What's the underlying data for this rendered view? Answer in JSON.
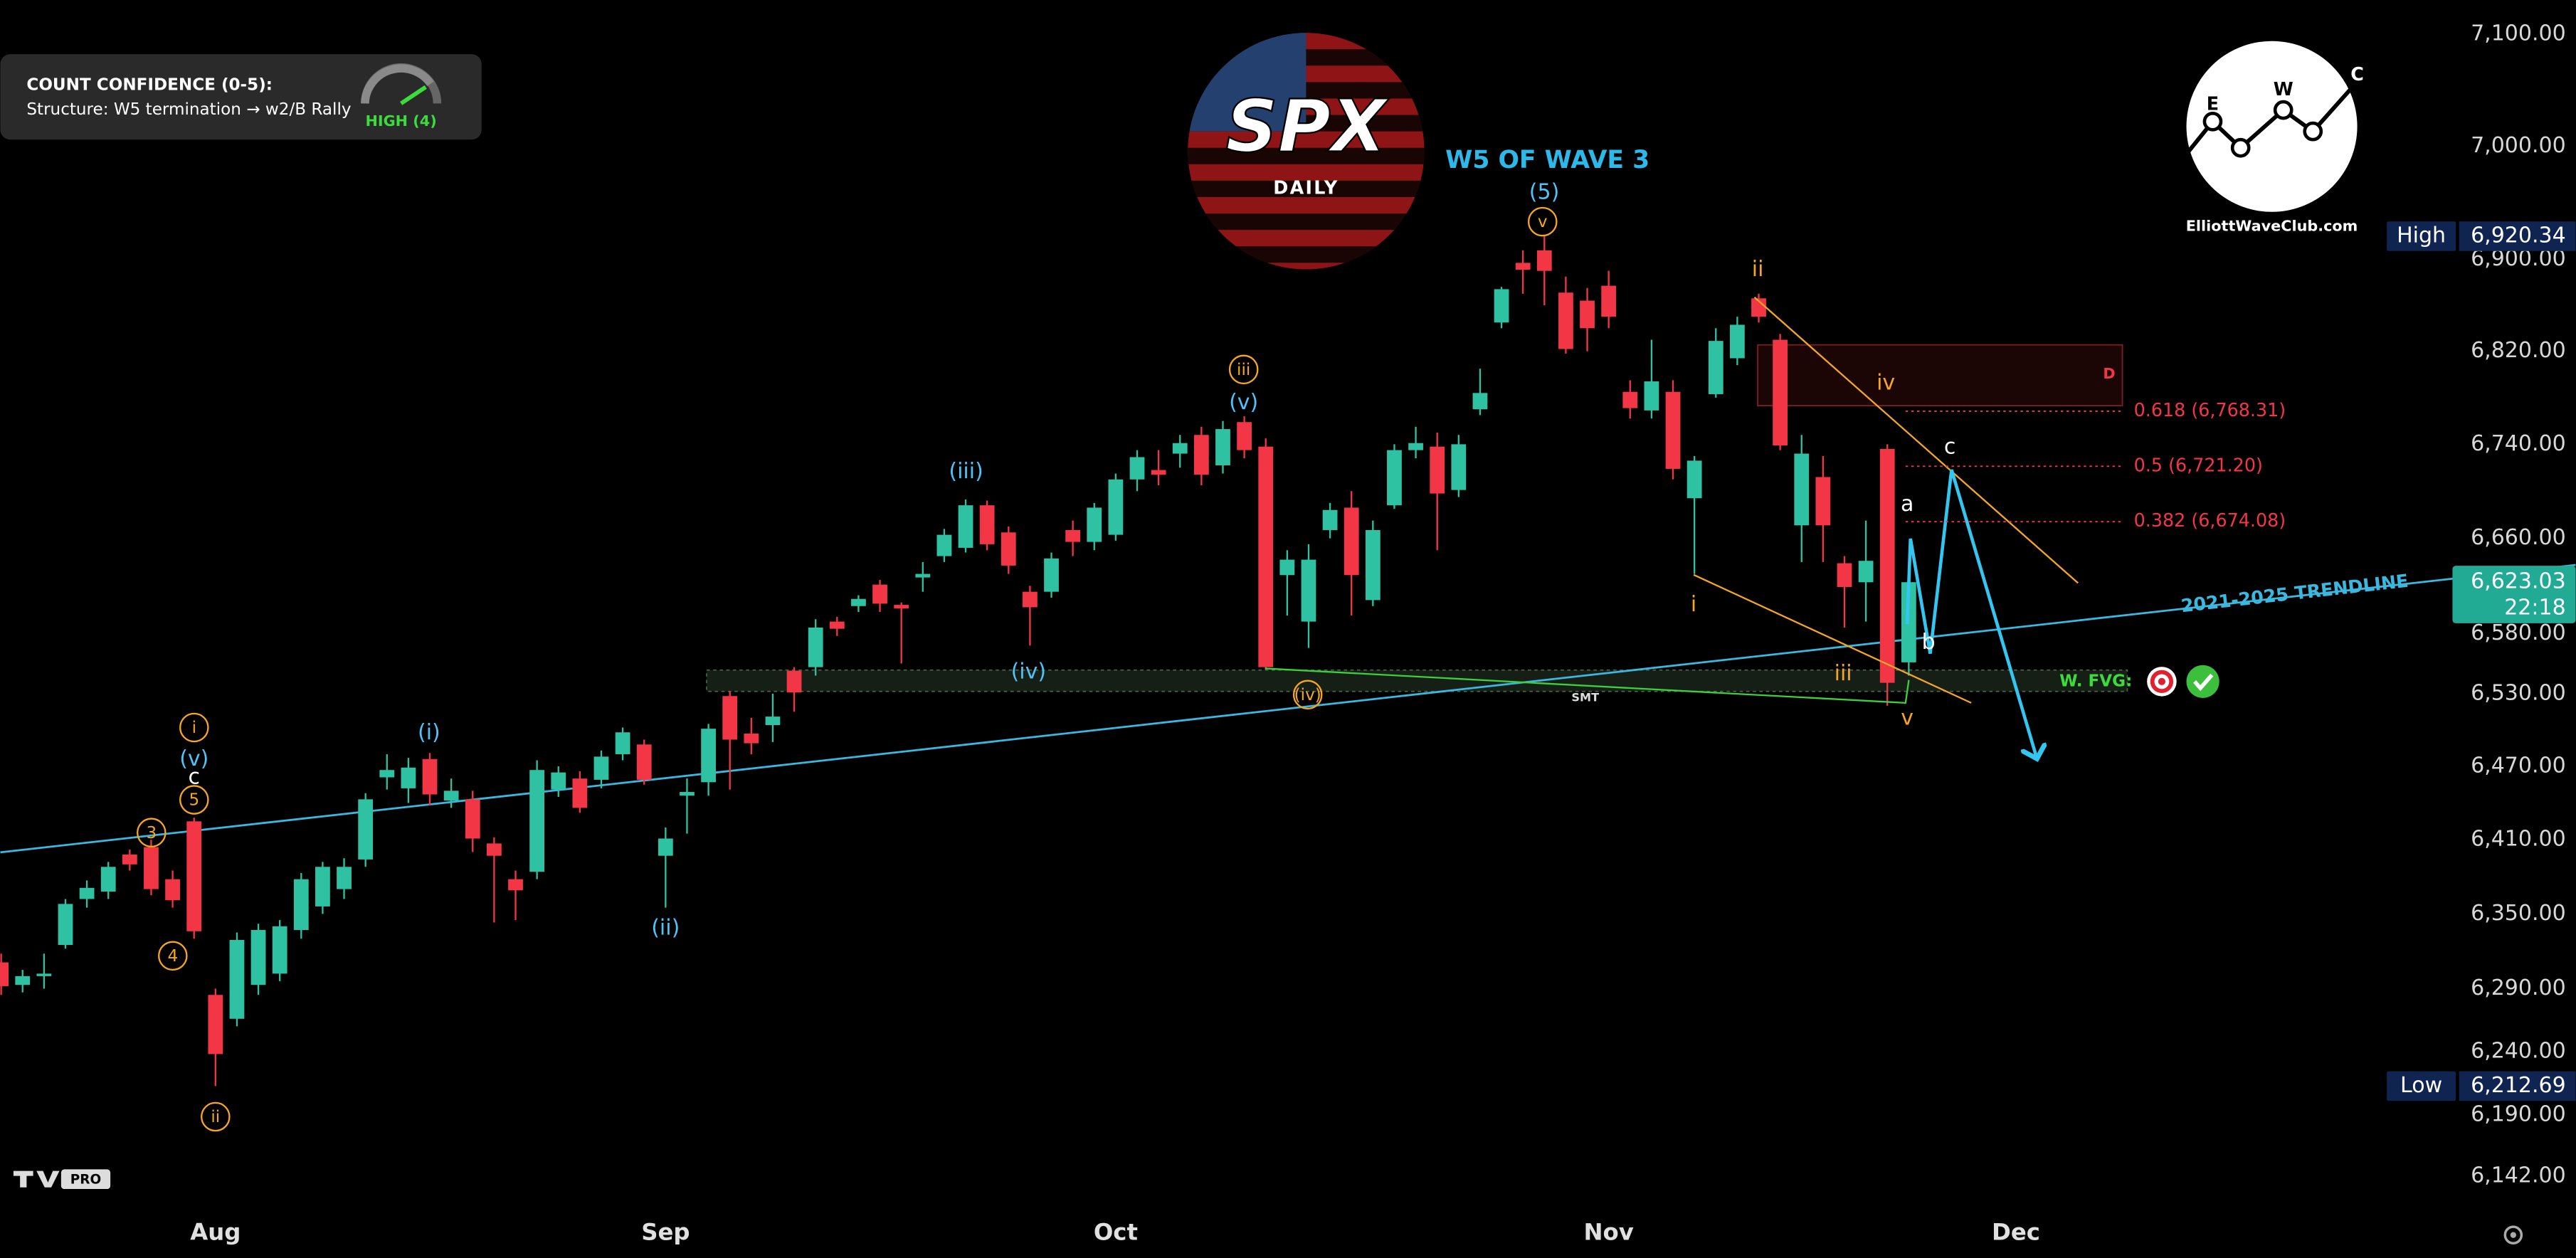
{
  "chart_data": {
    "type": "candlestick",
    "title": "SPX",
    "subtitle": "DAILY",
    "headline": "W5 OF WAVE 3",
    "brand": "ElliottWaveClub.com",
    "brand_letters": [
      "E",
      "W",
      "C"
    ],
    "confidence": {
      "title": "COUNT CONFIDENCE (0-5):",
      "structure": "Structure: W5 termination → w2/B Rally",
      "rating": "HIGH (4)"
    },
    "trendline_label": "2021-2025 TRENDLINE",
    "fvg_label": "W. FVG:",
    "smt_label": "SMT",
    "zone_label": "D",
    "platform_badge": "PRO",
    "log_scale": true,
    "grid": false,
    "up_color": "#2fc2a2",
    "down_color": "#f23645",
    "ylim": [
      6118,
      7131
    ],
    "yticks": [
      {
        "value": 6142,
        "label": "6,142.00"
      },
      {
        "value": 6190,
        "label": "6,190.00"
      },
      {
        "value": 6240,
        "label": "6,240.00"
      },
      {
        "value": 6290,
        "label": "6,290.00"
      },
      {
        "value": 6350,
        "label": "6,350.00"
      },
      {
        "value": 6410,
        "label": "6,410.00"
      },
      {
        "value": 6470,
        "label": "6,470.00"
      },
      {
        "value": 6530,
        "label": "6,530.00"
      },
      {
        "value": 6580,
        "label": "6,580.00"
      },
      {
        "value": 6660,
        "label": "6,660.00"
      },
      {
        "value": 6740,
        "label": "6,740.00"
      },
      {
        "value": 6820,
        "label": "6,820.00"
      },
      {
        "value": 6900,
        "label": "6,900.00"
      },
      {
        "value": 7000,
        "label": "7,000.00"
      },
      {
        "value": 7100,
        "label": "7,100.00"
      }
    ],
    "categories": [
      null,
      null,
      null,
      null,
      null,
      null,
      null,
      null,
      null,
      null,
      "Aug",
      null,
      null,
      null,
      null,
      null,
      null,
      null,
      null,
      null,
      null,
      null,
      null,
      null,
      null,
      null,
      null,
      null,
      null,
      null,
      null,
      "Sep",
      null,
      null,
      null,
      null,
      null,
      null,
      null,
      null,
      null,
      null,
      null,
      null,
      null,
      null,
      null,
      null,
      null,
      null,
      null,
      null,
      "Oct",
      null,
      null,
      null,
      null,
      null,
      null,
      null,
      null,
      null,
      null,
      null,
      null,
      null,
      null,
      null,
      null,
      null,
      null,
      null,
      null,
      null,
      null,
      "Nov",
      null,
      null,
      null,
      null,
      null,
      null,
      null,
      null,
      null,
      null,
      null,
      null,
      null,
      null,
      null,
      null,
      null,
      null,
      "Dec"
    ],
    "open": [
      6311,
      6293,
      6300,
      6325,
      6362,
      6368,
      6398,
      6404,
      6378,
      6425,
      6285,
      6266,
      6293,
      6302,
      6337,
      6356,
      6370,
      6394,
      6461,
      6452,
      6476,
      6442,
      6443,
      6407,
      6378,
      6384,
      6451,
      6460,
      6459,
      6480,
      6488,
      6397,
      6446,
      6457,
      6528,
      6497,
      6504,
      6549,
      6552,
      6590,
      6603,
      6621,
      6604,
      6627,
      6645,
      6652,
      6688,
      6665,
      6615,
      6615,
      6667,
      6657,
      6663,
      6710,
      6718,
      6732,
      6748,
      6722,
      6759,
      6738,
      6629,
      6590,
      6667,
      6686,
      6608,
      6688,
      6735,
      6738,
      6701,
      6770,
      6845,
      6897,
      6908,
      6871,
      6864,
      6877,
      6785,
      6769,
      6785,
      6694,
      6783,
      6814,
      6866,
      6830,
      6671,
      6712,
      6639,
      6623,
      6736,
      6556,
      null,
      null,
      null,
      null,
      null
    ],
    "high": [
      6318,
      6305,
      6318,
      6362,
      6377,
      6392,
      6402,
      6410,
      6385,
      6428,
      6290,
      6335,
      6342,
      6345,
      6383,
      6392,
      6395,
      6448,
      6480,
      6477,
      6481,
      6460,
      6450,
      6412,
      6385,
      6475,
      6470,
      6466,
      6483,
      6502,
      6492,
      6420,
      6460,
      6505,
      6532,
      6510,
      6530,
      6552,
      6592,
      6594,
      6612,
      6625,
      6606,
      6640,
      6668,
      6693,
      6692,
      6670,
      6620,
      6648,
      6675,
      6690,
      6715,
      6735,
      6735,
      6748,
      6755,
      6760,
      6764,
      6745,
      6650,
      6655,
      6690,
      6700,
      6675,
      6740,
      6755,
      6750,
      6748,
      6805,
      6876,
      6908,
      6920.34,
      6885,
      6875,
      6890,
      6795,
      6830,
      6795,
      6730,
      6840,
      6850,
      6870,
      6835,
      6748,
      6730,
      6645,
      6675,
      6740,
      6630,
      null,
      null,
      null,
      null,
      null
    ],
    "low": [
      6285,
      6287,
      6290,
      6322,
      6355,
      6362,
      6385,
      6365,
      6355,
      6330,
      6212.69,
      6260,
      6285,
      6296,
      6330,
      6350,
      6362,
      6388,
      6451,
      6440,
      6438,
      6436,
      6400,
      6343,
      6345,
      6378,
      6445,
      6432,
      6452,
      6475,
      6455,
      6355,
      6415,
      6446,
      6451,
      6480,
      6490,
      6515,
      6545,
      6578,
      6598,
      6598,
      6555,
      6615,
      6640,
      6648,
      6650,
      6630,
      6570,
      6610,
      6645,
      6650,
      6658,
      6700,
      6705,
      6720,
      6705,
      6715,
      6728,
      6550,
      6595,
      6568,
      6660,
      6595,
      6603,
      6685,
      6728,
      6650,
      6695,
      6765,
      6840,
      6870,
      6860,
      6818,
      6820,
      6840,
      6762,
      6762,
      6710,
      6630,
      6780,
      6808,
      6845,
      6735,
      6640,
      6640,
      6585,
      6590,
      6520,
      6545,
      null,
      null,
      null,
      null,
      null
    ],
    "close": [
      6292,
      6300,
      6302,
      6358,
      6371,
      6388,
      6390,
      6370,
      6361,
      6336,
      6238,
      6329,
      6337,
      6340,
      6378,
      6388,
      6388,
      6443,
      6467,
      6469,
      6447,
      6450,
      6411,
      6397,
      6369,
      6467,
      6465,
      6436,
      6478,
      6498,
      6459,
      6411,
      6449,
      6501,
      6492,
      6489,
      6511,
      6531,
      6585,
      6584,
      6609,
      6605,
      6601,
      6630,
      6663,
      6688,
      6655,
      6637,
      6602,
      6643,
      6657,
      6686,
      6710,
      6729,
      6714,
      6741,
      6714,
      6753,
      6735,
      6552,
      6642,
      6642,
      6684,
      6629,
      6667,
      6735,
      6741,
      6698,
      6740,
      6784,
      6874,
      6891,
      6890,
      6822,
      6840,
      6850,
      6771,
      6794,
      6719,
      6726,
      6829,
      6843,
      6850,
      6739,
      6732,
      6671,
      6619,
      6641,
      6539,
      6623.03,
      null,
      null,
      null,
      null,
      null
    ],
    "fib_levels": [
      {
        "value": 6768.31,
        "label": "0.618 (6,768.31)"
      },
      {
        "value": 6721.2,
        "label": "0.5 (6,721.20)"
      },
      {
        "value": 6674.08,
        "label": "0.382 (6,674.08)"
      }
    ],
    "price_markers": [
      {
        "name": "High",
        "value": 6920.34,
        "label": "6,920.34"
      },
      {
        "name": "Low",
        "value": 6212.69,
        "label": "6,212.69"
      }
    ],
    "last_price": {
      "value": 6623.03,
      "label": "6,623.03",
      "countdown": "22:18"
    },
    "wave_labels": [
      "(5)",
      "v",
      "ii",
      "iv",
      "c",
      "a",
      "b",
      "i",
      "iii",
      "v",
      "(iv)",
      "(iv)",
      "iii",
      "(v)",
      "(iii)",
      "(ii)",
      "(i)",
      "i",
      "(v)",
      "c",
      "5",
      "3",
      "4",
      "ii"
    ]
  }
}
